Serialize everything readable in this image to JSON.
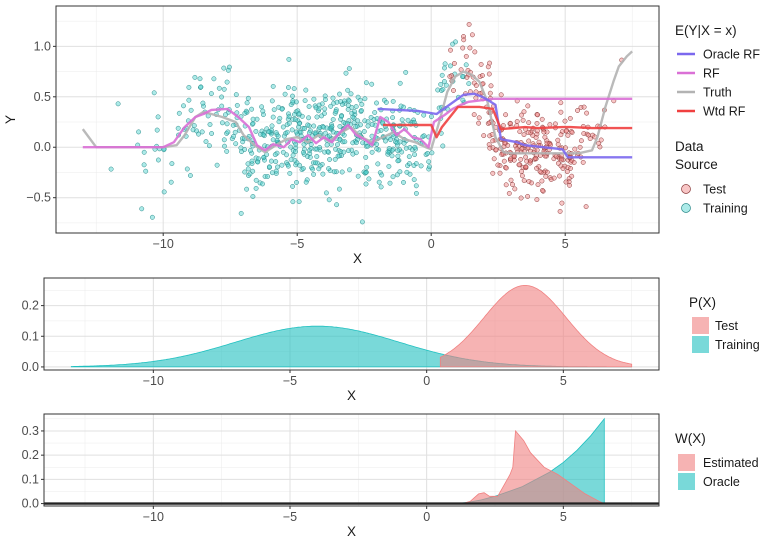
{
  "chart_data": [
    {
      "type": "line",
      "xlabel": "X",
      "ylabel": "Y",
      "xlim": [
        -14,
        8.5
      ],
      "ylim": [
        -0.85,
        1.4
      ],
      "xticks": [
        -10,
        -5,
        0,
        5
      ],
      "xtick_labels": [
        "−10",
        "−5",
        "0",
        "5"
      ],
      "yticks": [
        -0.5,
        0.0,
        0.5,
        1.0
      ],
      "ytick_labels": [
        "−0.5",
        "0.0",
        "0.5",
        "1.0"
      ],
      "grid": true,
      "legend_title": "E(Y|X = x)",
      "series": [
        {
          "name": "Oracle RF",
          "color": "#7b68ee",
          "x": [
            -2,
            -0.5,
            0.2,
            1.2,
            1.6,
            1.9,
            2.1,
            2.4,
            2.6,
            3.2,
            3.5,
            4.9,
            5.1,
            7.5
          ],
          "y": [
            0.38,
            0.36,
            0.33,
            0.52,
            0.53,
            0.5,
            0.47,
            0.42,
            0.08,
            0.05,
            0.02,
            -0.02,
            -0.1,
            -0.1
          ]
        },
        {
          "name": "RF",
          "color": "#da70d6",
          "x": [
            -13,
            -10,
            -9.6,
            -9.2,
            -8.8,
            -8.5,
            -8.2,
            -7.6,
            -7.2,
            -6.8,
            -6.5,
            -6.2,
            -5.9,
            -5.5,
            -5.2,
            -4.9,
            -4.6,
            -4.3,
            -4.0,
            -3.7,
            -3.4,
            -3.1,
            -2.8,
            -2.5,
            -2.2,
            -1.9,
            -1.6,
            -1.3,
            -1.0,
            -0.7,
            -0.4,
            -0.1,
            0.1,
            0.5,
            0.8,
            1.1,
            1.4,
            1.7,
            2.0,
            2.3,
            2.5,
            7.5
          ],
          "y": [
            0.0,
            0.0,
            0.05,
            0.2,
            0.3,
            0.33,
            0.37,
            0.38,
            0.3,
            0.2,
            0.02,
            -0.03,
            0.03,
            0.0,
            0.08,
            0.05,
            0.12,
            0.04,
            0.1,
            0.05,
            0.15,
            0.22,
            0.12,
            0.08,
            0.02,
            0.3,
            0.25,
            0.12,
            0.18,
            0.1,
            0.08,
            0.0,
            0.25,
            0.32,
            0.38,
            0.42,
            0.45,
            0.46,
            0.47,
            0.48,
            0.48,
            0.48
          ]
        },
        {
          "name": "Truth",
          "color": "#b3b3b3",
          "x": [
            -13,
            -12.5,
            -12,
            -11,
            -10,
            -9.5,
            -9.2,
            -8.8,
            -8.5,
            -8.2,
            -7.8,
            -7.3,
            -7.0,
            -6.6,
            -6.2,
            -5.8,
            -5.4,
            -5.0,
            -4.6,
            -4.2,
            -3.8,
            -3.4,
            -3.0,
            -2.6,
            -2.2,
            -1.8,
            -1.4,
            -1.0,
            -0.6,
            -0.2,
            0.0,
            0.3,
            0.6,
            0.9,
            1.2,
            1.5,
            1.8,
            2.1,
            2.4,
            2.7,
            3.0,
            3.5,
            4.0,
            4.5,
            5.0,
            5.5,
            6.0,
            6.2,
            6.5,
            6.8,
            7.0,
            7.3,
            7.5
          ],
          "y": [
            0.18,
            0.0,
            0.0,
            0.0,
            0.0,
            0.02,
            0.12,
            0.3,
            0.35,
            0.33,
            0.3,
            0.25,
            0.12,
            0.02,
            -0.05,
            0.02,
            0.08,
            0.1,
            0.05,
            0.12,
            0.06,
            0.14,
            0.2,
            0.1,
            0.05,
            0.1,
            0.15,
            0.08,
            0.05,
            0.0,
            -0.02,
            0.25,
            0.55,
            0.7,
            0.75,
            0.72,
            0.65,
            0.45,
            0.1,
            -0.05,
            -0.06,
            -0.06,
            -0.06,
            -0.06,
            -0.06,
            -0.06,
            -0.03,
            0.1,
            0.4,
            0.65,
            0.8,
            0.9,
            0.95
          ]
        },
        {
          "name": "Wtd RF",
          "color": "#f04040",
          "x": [
            -1.8,
            0.0,
            0.2,
            0.4,
            1.0,
            1.8,
            2.3,
            2.6,
            3.5,
            4.0,
            4.9,
            5.2,
            6.0,
            7.5
          ],
          "y": [
            0.22,
            0.22,
            0.1,
            0.2,
            0.4,
            0.4,
            0.38,
            0.18,
            0.2,
            0.19,
            0.2,
            0.2,
            0.19,
            0.19
          ]
        }
      ],
      "scatter_legend_title": "Data Source",
      "scatter_series": [
        {
          "name": "Test",
          "color": "#f08080"
        },
        {
          "name": "Training",
          "color": "#48d1cc"
        }
      ]
    },
    {
      "type": "area",
      "xlabel": "X",
      "ylabel": "",
      "xlim": [
        -14,
        8.5
      ],
      "ylim": [
        -0.01,
        0.29
      ],
      "xticks": [
        -10,
        -5,
        0,
        5
      ],
      "xtick_labels": [
        "−10",
        "−5",
        "0",
        "5"
      ],
      "yticks": [
        0.0,
        0.1,
        0.2
      ],
      "ytick_labels": [
        "0.0",
        "0.1",
        "0.2"
      ],
      "grid": true,
      "legend_title": "P(X)",
      "series": [
        {
          "name": "Test",
          "color": "#f08080",
          "mean": 3.6,
          "sd": 1.5,
          "xrange": [
            0.5,
            7.5
          ]
        },
        {
          "name": "Training",
          "color": "#20c0c0",
          "mean": -4.0,
          "sd": 3.0,
          "xrange": [
            -13.0,
            7.5
          ]
        }
      ]
    },
    {
      "type": "area",
      "xlabel": "X",
      "ylabel": "",
      "xlim": [
        -14,
        8.5
      ],
      "ylim": [
        -0.01,
        0.37
      ],
      "xticks": [
        -10,
        -5,
        0,
        5
      ],
      "xtick_labels": [
        "−10",
        "−5",
        "0",
        "5"
      ],
      "yticks": [
        0.0,
        0.1,
        0.2,
        0.3
      ],
      "ytick_labels": [
        "0.0",
        "0.1",
        "0.2",
        "0.3"
      ],
      "grid": true,
      "legend_title": "W(X)",
      "series": [
        {
          "name": "Estimated",
          "color": "#f08080",
          "x": [
            -13,
            1.3,
            1.6,
            1.9,
            2.1,
            2.3,
            2.6,
            2.9,
            3.05,
            3.15,
            3.25,
            3.4,
            3.55,
            3.8,
            4.3,
            4.8,
            5.3,
            5.8,
            6.3,
            6.5
          ],
          "y": [
            0,
            0.0,
            0.01,
            0.04,
            0.045,
            0.03,
            0.03,
            0.09,
            0.12,
            0.15,
            0.3,
            0.28,
            0.26,
            0.21,
            0.15,
            0.12,
            0.08,
            0.04,
            0.01,
            0.0
          ]
        },
        {
          "name": "Oracle",
          "color": "#20c0c0",
          "x": [
            -13,
            1.0,
            1.5,
            2.0,
            2.5,
            3.0,
            3.5,
            4.0,
            4.5,
            5.0,
            5.5,
            6.0,
            6.5
          ],
          "y": [
            0,
            0.0,
            0.005,
            0.015,
            0.03,
            0.05,
            0.07,
            0.1,
            0.13,
            0.17,
            0.22,
            0.28,
            0.35
          ]
        }
      ]
    }
  ]
}
